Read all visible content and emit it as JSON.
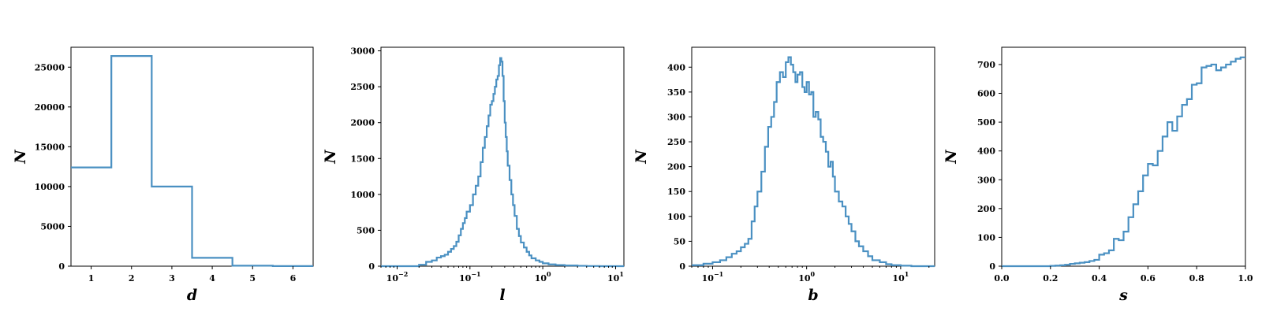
{
  "chart_data": [
    {
      "type": "histogram",
      "xlabel": "d",
      "ylabel": "N",
      "xscale": "linear",
      "xlim": [
        0.5,
        6.5
      ],
      "ylim": [
        0,
        27500
      ],
      "xticks": [
        1,
        2,
        3,
        4,
        5,
        6
      ],
      "xtick_labels": [
        "1",
        "2",
        "3",
        "4",
        "5",
        "6"
      ],
      "yticks": [
        0,
        5000,
        10000,
        15000,
        20000,
        25000
      ],
      "ytick_labels": [
        "0",
        "5000",
        "10000",
        "15000",
        "20000",
        "25000"
      ],
      "bin_edges": [
        0.5,
        1.5,
        2.5,
        3.5,
        4.5,
        5.5,
        6.5
      ],
      "counts": [
        12400,
        26400,
        10000,
        1050,
        60,
        10
      ]
    },
    {
      "type": "histogram",
      "xlabel": "l",
      "ylabel": "N",
      "xscale": "log",
      "xlim": [
        0.006,
        13
      ],
      "ylim": [
        0,
        3050
      ],
      "xticks": [
        0.01,
        0.1,
        1,
        10
      ],
      "xtick_labels": [
        [
          "10",
          "−2"
        ],
        [
          "10",
          "−1"
        ],
        [
          "10",
          "0"
        ],
        [
          "10",
          "1"
        ]
      ],
      "yticks": [
        0,
        500,
        1000,
        1500,
        2000,
        2500,
        3000
      ],
      "ytick_labels": [
        "0",
        "500",
        "1000",
        "1500",
        "2000",
        "2500",
        "3000"
      ],
      "bin_edges": [
        0.006,
        0.02,
        0.025,
        0.03,
        0.035,
        0.04,
        0.045,
        0.05,
        0.055,
        0.06,
        0.065,
        0.07,
        0.075,
        0.08,
        0.085,
        0.09,
        0.1,
        0.11,
        0.12,
        0.13,
        0.14,
        0.15,
        0.16,
        0.17,
        0.18,
        0.19,
        0.2,
        0.21,
        0.22,
        0.23,
        0.24,
        0.25,
        0.26,
        0.27,
        0.28,
        0.29,
        0.3,
        0.31,
        0.32,
        0.33,
        0.35,
        0.37,
        0.39,
        0.41,
        0.44,
        0.47,
        0.5,
        0.55,
        0.6,
        0.65,
        0.7,
        0.8,
        0.9,
        1.0,
        1.2,
        1.5,
        2.0,
        3.0,
        4.0,
        6.0,
        13
      ],
      "counts": [
        0,
        20,
        60,
        80,
        120,
        140,
        160,
        200,
        240,
        280,
        340,
        430,
        520,
        600,
        670,
        760,
        850,
        1000,
        1120,
        1250,
        1450,
        1650,
        1800,
        1950,
        2100,
        2250,
        2300,
        2400,
        2500,
        2600,
        2650,
        2800,
        2900,
        2850,
        2650,
        2300,
        2000,
        1800,
        1600,
        1400,
        1200,
        1000,
        850,
        700,
        520,
        420,
        330,
        260,
        200,
        150,
        110,
        80,
        60,
        40,
        25,
        15,
        10,
        5,
        2,
        0
      ]
    },
    {
      "type": "histogram",
      "xlabel": "b",
      "ylabel": "N",
      "xscale": "log",
      "xlim": [
        0.06,
        23
      ],
      "ylim": [
        0,
        440
      ],
      "xticks": [
        0.1,
        1,
        10
      ],
      "xtick_labels": [
        [
          "10",
          "−1"
        ],
        [
          "10",
          "0"
        ],
        [
          "10",
          "1"
        ]
      ],
      "yticks": [
        0,
        50,
        100,
        150,
        200,
        250,
        300,
        350,
        400
      ],
      "ytick_labels": [
        "0",
        "50",
        "100",
        "150",
        "200",
        "250",
        "300",
        "350",
        "400"
      ],
      "bin_edges": [
        0.06,
        0.08,
        0.1,
        0.12,
        0.14,
        0.16,
        0.18,
        0.2,
        0.22,
        0.24,
        0.26,
        0.28,
        0.3,
        0.33,
        0.36,
        0.39,
        0.42,
        0.45,
        0.48,
        0.52,
        0.56,
        0.6,
        0.64,
        0.68,
        0.72,
        0.76,
        0.8,
        0.85,
        0.9,
        0.95,
        1.0,
        1.06,
        1.12,
        1.18,
        1.25,
        1.33,
        1.41,
        1.5,
        1.6,
        1.7,
        1.8,
        1.9,
        2.0,
        2.2,
        2.4,
        2.6,
        2.8,
        3.0,
        3.3,
        3.6,
        4.0,
        4.5,
        5.0,
        6.0,
        7.0,
        8.0,
        10.0,
        13.0,
        23.0
      ],
      "counts": [
        2,
        5,
        8,
        12,
        18,
        25,
        30,
        38,
        45,
        55,
        90,
        120,
        150,
        190,
        240,
        280,
        300,
        330,
        370,
        390,
        380,
        410,
        420,
        405,
        390,
        370,
        385,
        390,
        360,
        350,
        370,
        345,
        350,
        300,
        310,
        295,
        260,
        250,
        230,
        200,
        210,
        180,
        150,
        130,
        120,
        100,
        85,
        70,
        50,
        40,
        30,
        20,
        12,
        8,
        4,
        2,
        1,
        0
      ]
    },
    {
      "type": "histogram",
      "xlabel": "s",
      "ylabel": "N",
      "xscale": "linear",
      "xlim": [
        0.0,
        1.0
      ],
      "ylim": [
        0,
        760
      ],
      "xticks": [
        0.0,
        0.2,
        0.4,
        0.6,
        0.8,
        1.0
      ],
      "xtick_labels": [
        "0.0",
        "0.2",
        "0.4",
        "0.6",
        "0.8",
        "1.0"
      ],
      "yticks": [
        0,
        100,
        200,
        300,
        400,
        500,
        600,
        700
      ],
      "ytick_labels": [
        "0",
        "100",
        "200",
        "300",
        "400",
        "500",
        "600",
        "700"
      ],
      "bin_edges": [
        0.0,
        0.02,
        0.04,
        0.06,
        0.08,
        0.1,
        0.12,
        0.14,
        0.16,
        0.18,
        0.2,
        0.22,
        0.24,
        0.26,
        0.28,
        0.3,
        0.32,
        0.34,
        0.36,
        0.38,
        0.4,
        0.42,
        0.44,
        0.46,
        0.48,
        0.5,
        0.52,
        0.54,
        0.56,
        0.58,
        0.6,
        0.62,
        0.64,
        0.66,
        0.68,
        0.7,
        0.72,
        0.74,
        0.76,
        0.78,
        0.8,
        0.82,
        0.84,
        0.86,
        0.88,
        0.9,
        0.92,
        0.94,
        0.96,
        0.98,
        1.0
      ],
      "counts": [
        0,
        0,
        0,
        0,
        0,
        0,
        0,
        0,
        0,
        0,
        1,
        2,
        3,
        5,
        8,
        10,
        12,
        14,
        18,
        22,
        40,
        45,
        55,
        95,
        90,
        120,
        170,
        215,
        260,
        315,
        355,
        350,
        400,
        450,
        500,
        470,
        520,
        560,
        580,
        630,
        635,
        690,
        695,
        700,
        680,
        690,
        700,
        710,
        720,
        725
      ]
    }
  ]
}
